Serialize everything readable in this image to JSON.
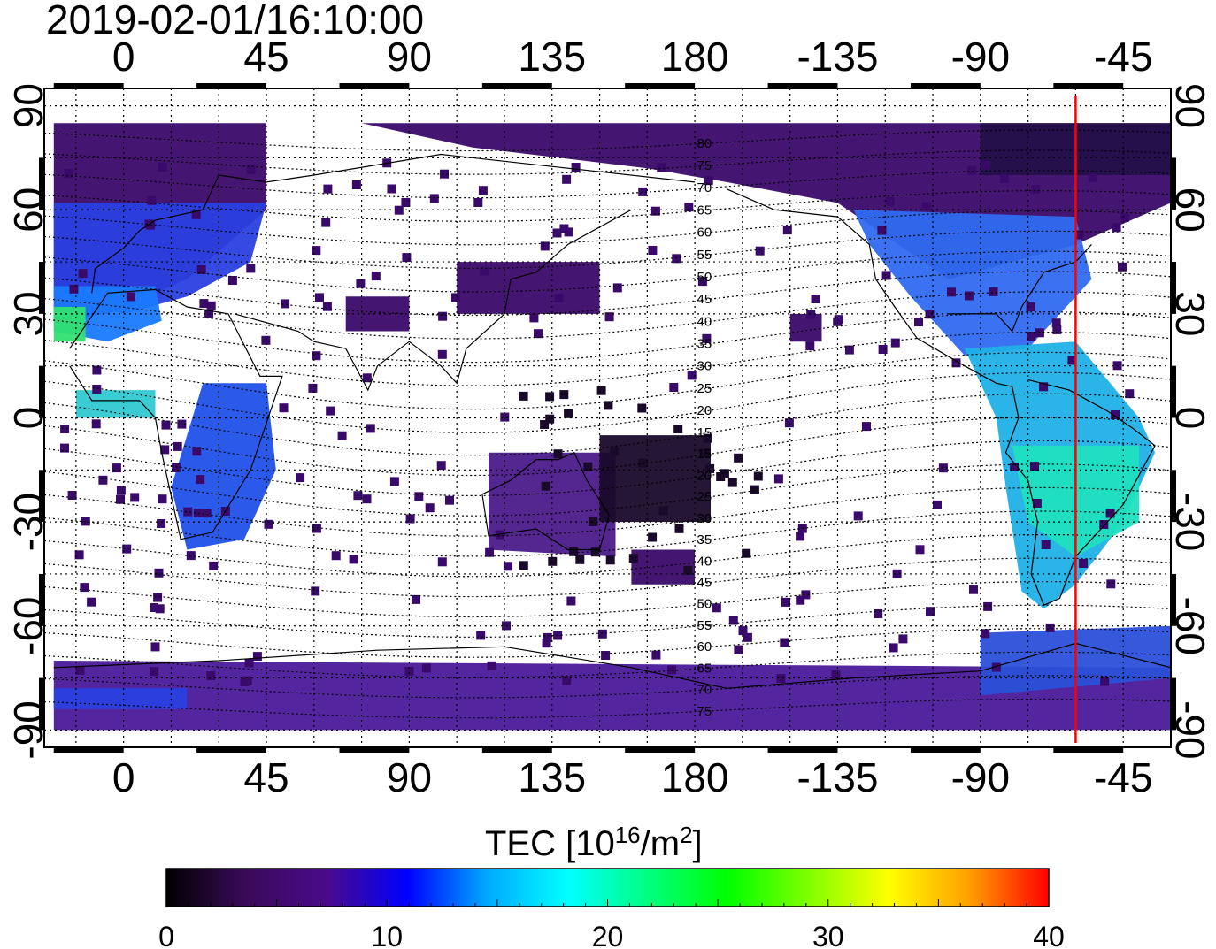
{
  "timestamp": "2019-02-01/16:10:00",
  "map": {
    "lon_ticks": [
      "0",
      "45",
      "90",
      "135",
      "180",
      "-135",
      "-90",
      "-45"
    ],
    "lon_values": [
      0,
      45,
      90,
      135,
      180,
      225,
      270,
      315
    ],
    "lat_ticks": [
      "90",
      "60",
      "30",
      "0",
      "-30",
      "-60",
      "-90"
    ],
    "lat_values": [
      90,
      60,
      30,
      0,
      -30,
      -60,
      -90
    ],
    "lon_range": [
      -25,
      330
    ],
    "lat_range": [
      -95,
      95
    ],
    "terminator_lon": 300,
    "terminator_color": "#ff0000",
    "contour_labels": [
      "80",
      "75",
      "70",
      "65",
      "60",
      "55",
      "50",
      "45",
      "40",
      "35",
      "30",
      "25",
      "20",
      "15",
      "15",
      "20",
      "25",
      "30",
      "35",
      "40",
      "45",
      "50",
      "55",
      "60",
      "65",
      "70",
      "75"
    ]
  },
  "colorbar": {
    "label_prefix": "TEC  [10",
    "label_exp": "16",
    "label_mid": "/m",
    "label_exp2": "2",
    "label_suffix": "]",
    "ticks": [
      "0",
      "10",
      "20",
      "30",
      "40"
    ],
    "tick_values": [
      0,
      10,
      20,
      30,
      40
    ],
    "range": [
      0,
      40
    ],
    "gradient_stops": [
      "#000000",
      "#3a0a5a",
      "#4a0a8a",
      "#0000ff",
      "#00aaff",
      "#00ffff",
      "#00ff80",
      "#00ff00",
      "#80ff00",
      "#ffff00",
      "#ffa000",
      "#ff0000"
    ]
  }
}
